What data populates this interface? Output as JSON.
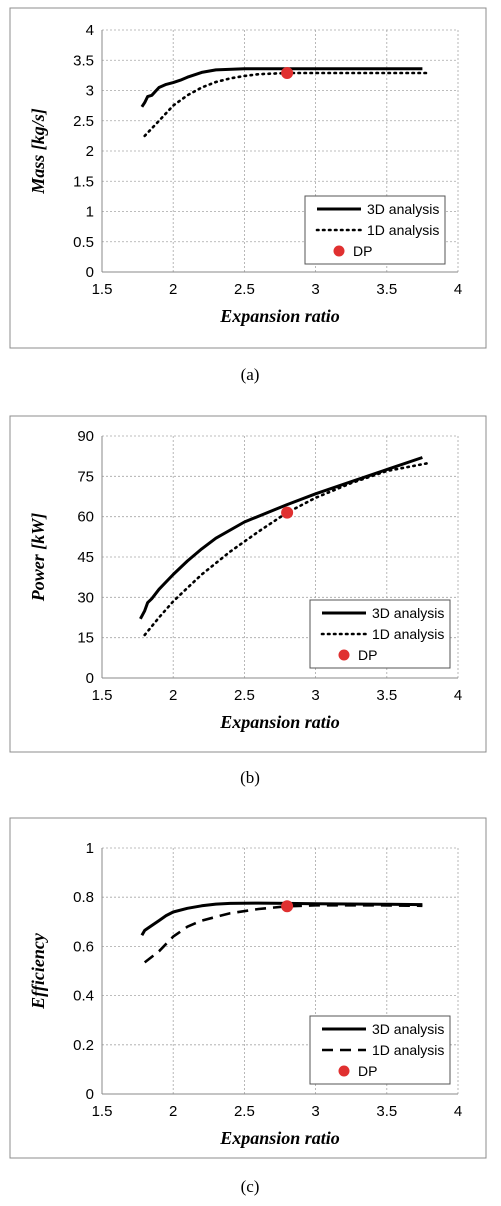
{
  "chart_data": [
    {
      "type": "line",
      "caption": "(a)",
      "xlabel": "Expansion ratio",
      "ylabel": "Mass [kg/s]",
      "xlim": [
        1.5,
        4
      ],
      "ylim": [
        0,
        4
      ],
      "xticks": [
        "1.5",
        "2",
        "2.5",
        "3",
        "3.5",
        "4"
      ],
      "yticks": [
        "0",
        "0.5",
        "1",
        "1.5",
        "2",
        "2.5",
        "3",
        "3.5",
        "4"
      ],
      "grid": true,
      "legend_position": "bottom-right",
      "series": [
        {
          "name": "3D analysis",
          "style": "solid",
          "x": [
            1.78,
            1.8,
            1.82,
            1.85,
            1.9,
            1.95,
            2.0,
            2.05,
            2.1,
            2.2,
            2.3,
            2.5,
            2.8,
            3.2,
            3.75
          ],
          "y": [
            2.73,
            2.8,
            2.9,
            2.92,
            3.05,
            3.1,
            3.13,
            3.17,
            3.22,
            3.3,
            3.34,
            3.36,
            3.36,
            3.36,
            3.36
          ]
        },
        {
          "name": "1D analysis",
          "style": "dotted",
          "x": [
            1.8,
            1.9,
            2.0,
            2.1,
            2.2,
            2.3,
            2.4,
            2.5,
            2.6,
            2.8,
            3.0,
            3.4,
            3.8
          ],
          "y": [
            2.25,
            2.5,
            2.75,
            2.92,
            3.05,
            3.14,
            3.2,
            3.24,
            3.27,
            3.29,
            3.29,
            3.29,
            3.29
          ]
        },
        {
          "name": "DP",
          "style": "marker",
          "x": [
            2.8
          ],
          "y": [
            3.29
          ]
        }
      ]
    },
    {
      "type": "line",
      "caption": "(b)",
      "xlabel": "Expansion ratio",
      "ylabel": "Power [kW]",
      "xlim": [
        1.5,
        4
      ],
      "ylim": [
        0,
        90
      ],
      "xticks": [
        "1.5",
        "2",
        "2.5",
        "3",
        "3.5",
        "4"
      ],
      "yticks": [
        "0",
        "15",
        "30",
        "45",
        "60",
        "75",
        "90"
      ],
      "grid": true,
      "legend_position": "bottom-right",
      "series": [
        {
          "name": "3D analysis",
          "style": "solid",
          "x": [
            1.77,
            1.8,
            1.82,
            1.85,
            1.9,
            2.0,
            2.1,
            2.2,
            2.3,
            2.5,
            2.8,
            3.0,
            3.25,
            3.5,
            3.75
          ],
          "y": [
            22,
            25,
            28,
            29.5,
            33,
            38.5,
            43.5,
            48,
            52,
            58,
            64.5,
            68.5,
            73,
            77.5,
            82
          ]
        },
        {
          "name": "1D analysis",
          "style": "dotted",
          "x": [
            1.8,
            1.9,
            2.0,
            2.1,
            2.2,
            2.4,
            2.6,
            2.8,
            3.0,
            3.25,
            3.5,
            3.8
          ],
          "y": [
            16,
            22.5,
            28.5,
            33.5,
            38.5,
            47,
            54.5,
            61.5,
            67,
            72.5,
            77,
            80
          ]
        },
        {
          "name": "DP",
          "style": "marker",
          "x": [
            2.8
          ],
          "y": [
            61.5
          ]
        }
      ]
    },
    {
      "type": "line",
      "caption": "(c)",
      "xlabel": "Expansion ratio",
      "ylabel": "Efficiency",
      "xlim": [
        1.5,
        4
      ],
      "ylim": [
        0,
        1
      ],
      "xticks": [
        "1.5",
        "2",
        "2.5",
        "3",
        "3.5",
        "4"
      ],
      "yticks": [
        "0",
        "0.2",
        "0.4",
        "0.6",
        "0.8",
        "1"
      ],
      "grid": true,
      "legend_position": "bottom-right",
      "series": [
        {
          "name": "3D analysis",
          "style": "solid",
          "x": [
            1.78,
            1.8,
            1.85,
            1.9,
            1.95,
            2.0,
            2.1,
            2.2,
            2.3,
            2.4,
            2.6,
            2.8,
            3.0,
            3.5,
            3.75
          ],
          "y": [
            0.645,
            0.665,
            0.685,
            0.705,
            0.725,
            0.74,
            0.755,
            0.765,
            0.772,
            0.775,
            0.776,
            0.775,
            0.773,
            0.771,
            0.77
          ]
        },
        {
          "name": "1D analysis",
          "style": "dashed",
          "x": [
            1.8,
            1.9,
            2.0,
            2.1,
            2.2,
            2.4,
            2.6,
            2.8,
            3.0,
            3.4,
            3.75
          ],
          "y": [
            0.535,
            0.58,
            0.64,
            0.68,
            0.705,
            0.735,
            0.752,
            0.763,
            0.767,
            0.767,
            0.765
          ]
        },
        {
          "name": "DP",
          "style": "marker",
          "x": [
            2.8
          ],
          "y": [
            0.763
          ]
        }
      ]
    }
  ]
}
